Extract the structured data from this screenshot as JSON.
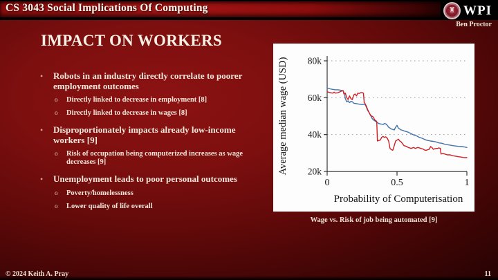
{
  "header": {
    "course_title": "CS 3043 Social Implications Of Computing",
    "logo_text": "WPI",
    "author": "Ben Proctor"
  },
  "slide": {
    "title": "IMPACT ON WORKERS",
    "bullets": [
      {
        "text": "Robots in an industry directly correlate to poorer employment outcomes",
        "subs": [
          "Directly linked to decrease in employment [8]",
          "Directly linked to decrease in wages [8]"
        ]
      },
      {
        "text": "Disproportionately impacts already low-income workers [9]",
        "subs": [
          "Risk of occupation being computerized increases as wage decreases [9]"
        ]
      },
      {
        "text": "Unemployment leads to poor personal outcomes",
        "subs": [
          "Poverty/homelessness",
          "Lower quality of life overall"
        ]
      }
    ],
    "caption": "Wage vs. Risk of job being automated [9]"
  },
  "footer": {
    "copyright": "© 2024 Keith A. Pray",
    "page_number": "11"
  },
  "chart_data": {
    "type": "line",
    "title": "",
    "xlabel": "Probability of Computerisation",
    "ylabel": "Average median wage (USD)",
    "xlim": [
      0,
      1
    ],
    "ylim": [
      20000,
      80000
    ],
    "grid": "dotted horizontal gridlines at 40k, 60k, 80k",
    "legend_position": "none",
    "xticks": [
      {
        "value": 0,
        "label": "0"
      },
      {
        "value": 0.5,
        "label": "0.5"
      },
      {
        "value": 1,
        "label": "1"
      }
    ],
    "yticks": [
      {
        "value": 20000,
        "label": "20k"
      },
      {
        "value": 40000,
        "label": "40k"
      },
      {
        "value": 60000,
        "label": "60k"
      },
      {
        "value": 80000,
        "label": "80k"
      }
    ],
    "axis_color": "#333333",
    "grid_color": "#999999",
    "series": [
      {
        "name": "blue-series",
        "color": "#4272a8",
        "points": [
          [
            0,
            65300
          ],
          [
            0.02,
            64800
          ],
          [
            0.04,
            64500
          ],
          [
            0.06,
            64300
          ],
          [
            0.08,
            64300
          ],
          [
            0.1,
            64000
          ],
          [
            0.115,
            63800
          ],
          [
            0.125,
            61500
          ],
          [
            0.13,
            59500
          ],
          [
            0.14,
            57800
          ],
          [
            0.15,
            58300
          ],
          [
            0.16,
            57300
          ],
          [
            0.17,
            58000
          ],
          [
            0.18,
            57800
          ],
          [
            0.19,
            57000
          ],
          [
            0.21,
            56800
          ],
          [
            0.23,
            56500
          ],
          [
            0.25,
            56300
          ],
          [
            0.27,
            56500
          ],
          [
            0.28,
            55000
          ],
          [
            0.29,
            53000
          ],
          [
            0.3,
            52000
          ],
          [
            0.31,
            50500
          ],
          [
            0.32,
            49000
          ],
          [
            0.33,
            48000
          ],
          [
            0.34,
            47500
          ],
          [
            0.35,
            47000
          ],
          [
            0.36,
            46500
          ],
          [
            0.37,
            46000
          ],
          [
            0.38,
            45800
          ],
          [
            0.4,
            45500
          ],
          [
            0.41,
            46000
          ],
          [
            0.42,
            45800
          ],
          [
            0.43,
            45000
          ],
          [
            0.44,
            44000
          ],
          [
            0.45,
            43500
          ],
          [
            0.46,
            43000
          ],
          [
            0.47,
            42800
          ],
          [
            0.48,
            42500
          ],
          [
            0.49,
            44000
          ],
          [
            0.5,
            45000
          ],
          [
            0.51,
            43500
          ],
          [
            0.52,
            43000
          ],
          [
            0.53,
            42500
          ],
          [
            0.54,
            42300
          ],
          [
            0.55,
            42000
          ],
          [
            0.56,
            41800
          ],
          [
            0.58,
            41300
          ],
          [
            0.6,
            40500
          ],
          [
            0.62,
            39800
          ],
          [
            0.64,
            39300
          ],
          [
            0.66,
            38500
          ],
          [
            0.68,
            38000
          ],
          [
            0.7,
            37300
          ],
          [
            0.72,
            36800
          ],
          [
            0.74,
            36500
          ],
          [
            0.76,
            36300
          ],
          [
            0.78,
            36000
          ],
          [
            0.8,
            35500
          ],
          [
            0.82,
            35300
          ],
          [
            0.84,
            34800
          ],
          [
            0.86,
            34500
          ],
          [
            0.88,
            34300
          ],
          [
            0.9,
            34000
          ],
          [
            0.92,
            33800
          ],
          [
            0.94,
            33600
          ],
          [
            0.96,
            33500
          ],
          [
            0.98,
            33300
          ],
          [
            1.0,
            33000
          ]
        ]
      },
      {
        "name": "red-series",
        "color": "#cf1f24",
        "points": [
          [
            0,
            63200
          ],
          [
            0.02,
            62800
          ],
          [
            0.04,
            62500
          ],
          [
            0.05,
            63000
          ],
          [
            0.06,
            62500
          ],
          [
            0.08,
            62800
          ],
          [
            0.1,
            63500
          ],
          [
            0.115,
            63800
          ],
          [
            0.12,
            62000
          ],
          [
            0.13,
            62500
          ],
          [
            0.14,
            60000
          ],
          [
            0.15,
            59000
          ],
          [
            0.16,
            61000
          ],
          [
            0.17,
            59500
          ],
          [
            0.18,
            59000
          ],
          [
            0.19,
            61500
          ],
          [
            0.2,
            62000
          ],
          [
            0.21,
            61000
          ],
          [
            0.22,
            62500
          ],
          [
            0.23,
            62300
          ],
          [
            0.24,
            62800
          ],
          [
            0.25,
            62800
          ],
          [
            0.26,
            62500
          ],
          [
            0.265,
            57500
          ],
          [
            0.27,
            57000
          ],
          [
            0.28,
            55500
          ],
          [
            0.29,
            53500
          ],
          [
            0.3,
            52000
          ],
          [
            0.31,
            50500
          ],
          [
            0.32,
            50000
          ],
          [
            0.33,
            49500
          ],
          [
            0.34,
            48000
          ],
          [
            0.35,
            47500
          ],
          [
            0.355,
            47000
          ],
          [
            0.36,
            36500
          ],
          [
            0.37,
            36800
          ],
          [
            0.38,
            37000
          ],
          [
            0.39,
            38500
          ],
          [
            0.4,
            39000
          ],
          [
            0.41,
            38500
          ],
          [
            0.42,
            38800
          ],
          [
            0.43,
            38000
          ],
          [
            0.44,
            36500
          ],
          [
            0.45,
            32500
          ],
          [
            0.46,
            31800
          ],
          [
            0.47,
            31500
          ],
          [
            0.48,
            34000
          ],
          [
            0.49,
            36500
          ],
          [
            0.5,
            37000
          ],
          [
            0.51,
            37500
          ],
          [
            0.52,
            36500
          ],
          [
            0.53,
            36000
          ],
          [
            0.54,
            35000
          ],
          [
            0.55,
            34000
          ],
          [
            0.56,
            33800
          ],
          [
            0.57,
            33500
          ],
          [
            0.58,
            33000
          ],
          [
            0.59,
            32800
          ],
          [
            0.6,
            32500
          ],
          [
            0.61,
            32800
          ],
          [
            0.62,
            33000
          ],
          [
            0.63,
            32500
          ],
          [
            0.64,
            32800
          ],
          [
            0.65,
            33000
          ],
          [
            0.66,
            32800
          ],
          [
            0.67,
            32500
          ],
          [
            0.68,
            32300
          ],
          [
            0.69,
            32000
          ],
          [
            0.7,
            31500
          ],
          [
            0.71,
            31500
          ],
          [
            0.72,
            31800
          ],
          [
            0.73,
            32000
          ],
          [
            0.74,
            33500
          ],
          [
            0.75,
            33000
          ],
          [
            0.76,
            32000
          ],
          [
            0.77,
            32300
          ],
          [
            0.78,
            32500
          ],
          [
            0.79,
            32500
          ],
          [
            0.8,
            32800
          ],
          [
            0.81,
            32500
          ],
          [
            0.815,
            29500
          ],
          [
            0.83,
            29800
          ],
          [
            0.84,
            29500
          ],
          [
            0.86,
            29000
          ],
          [
            0.88,
            29000
          ],
          [
            0.9,
            28500
          ],
          [
            0.92,
            28300
          ],
          [
            0.94,
            28000
          ],
          [
            0.96,
            27800
          ],
          [
            0.98,
            27500
          ],
          [
            1.0,
            27500
          ]
        ]
      }
    ]
  }
}
